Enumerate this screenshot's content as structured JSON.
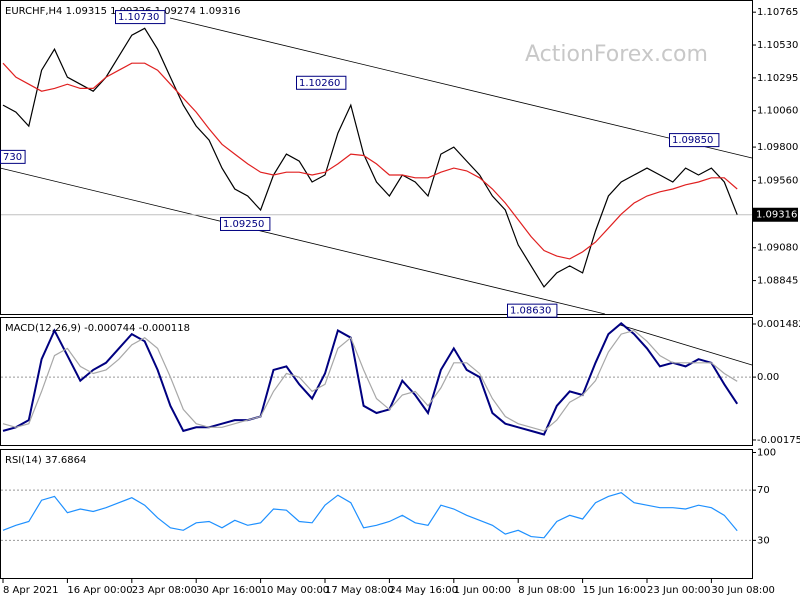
{
  "chart_data": [
    {
      "type": "line",
      "title": "EURCHF,H4  1.09315 1.09326 1.09274 1.09316",
      "watermark": "ActionForex.com",
      "ylim": [
        1.08606,
        1.10845
      ],
      "yticks": [
        1.10765,
        {
          "value": 1.1053,
          "label": "1.10530"
        },
        1.10295,
        {
          "value": 1.1006,
          "label": "1.10060"
        },
        {
          "value": 1.098,
          "label": "1.09800"
        },
        {
          "value": 1.0956,
          "label": "1.09560"
        },
        {
          "value": 1.0908,
          "label": "1.09080"
        },
        1.08845
      ],
      "last_price": 1.09316,
      "annotations": [
        {
          "value": 1.1073,
          "label": "1.10730"
        },
        {
          "value": 1.1026,
          "label": "1.10260"
        },
        {
          "value": 1.0985,
          "label": "1.09850"
        },
        {
          "value": 1.0925,
          "label": "1.09250"
        },
        {
          "value": 1.0863,
          "label": "1.08630"
        },
        {
          "value": 1.0973,
          "label": "730"
        }
      ],
      "series": [
        {
          "color": "#000000",
          "values": [
            1.101,
            1.1005,
            1.0995,
            1.1035,
            1.105,
            1.103,
            1.1025,
            1.102,
            1.103,
            1.1045,
            1.106,
            1.1065,
            1.105,
            1.103,
            1.101,
            1.0995,
            1.0985,
            1.0965,
            1.095,
            1.0945,
            1.0935,
            1.096,
            1.0975,
            1.097,
            1.0955,
            1.096,
            1.099,
            1.101,
            1.0975,
            1.0955,
            1.0945,
            1.096,
            1.0955,
            1.0945,
            1.0975,
            1.098,
            1.097,
            1.096,
            1.0945,
            1.0935,
            1.091,
            1.0895,
            1.088,
            1.089,
            1.0895,
            1.089,
            1.092,
            1.0945,
            1.0955,
            1.096,
            1.0965,
            1.096,
            1.0955,
            1.0965,
            1.096,
            1.0965,
            1.0955,
            1.09316
          ]
        },
        {
          "color": "#e02020",
          "values": [
            1.104,
            1.103,
            1.1025,
            1.102,
            1.1022,
            1.1025,
            1.1022,
            1.1022,
            1.103,
            1.1035,
            1.104,
            1.104,
            1.1035,
            1.1025,
            1.1015,
            1.1005,
            1.0993,
            1.0982,
            1.0975,
            1.0968,
            1.0962,
            1.096,
            1.0962,
            1.0962,
            1.096,
            1.0962,
            1.0968,
            1.0975,
            1.0974,
            1.0968,
            1.096,
            1.096,
            1.0958,
            1.0958,
            1.0962,
            1.0965,
            1.0963,
            1.0958,
            1.095,
            1.094,
            1.0928,
            1.0916,
            1.0906,
            1.0902,
            1.09,
            1.0905,
            1.0912,
            1.0922,
            1.0932,
            1.094,
            1.0945,
            1.0948,
            1.095,
            1.0953,
            1.0955,
            1.0958,
            1.0958,
            1.095
          ]
        }
      ]
    },
    {
      "type": "line",
      "title": "MACD(12,26,9) -0.000744 -0.000118",
      "ylim": [
        -0.001894,
        0.001649
      ],
      "yticks": [
        0.001482,
        {
          "value": 0,
          "label": "0.00"
        },
        -0.001754
      ],
      "series": [
        {
          "color": "#000080",
          "values": [
            -0.0015,
            -0.0014,
            -0.0012,
            0.0005,
            0.0013,
            0.0006,
            -0.0001,
            0.0002,
            0.0004,
            0.0008,
            0.0012,
            0.001,
            0.0002,
            -0.0008,
            -0.0015,
            -0.0014,
            -0.0014,
            -0.0013,
            -0.0012,
            -0.0012,
            -0.0011,
            0.0002,
            0.0003,
            -0.0002,
            -0.0006,
            0.0001,
            0.0013,
            0.0011,
            -0.0008,
            -0.001,
            -0.0009,
            -0.0001,
            -0.0005,
            -0.001,
            0.0002,
            0.0008,
            0.0002,
            0.0,
            -0.001,
            -0.0013,
            -0.0014,
            -0.0015,
            -0.0016,
            -0.0008,
            -0.0004,
            -0.0005,
            0.0004,
            0.0012,
            0.0015,
            0.0012,
            0.0008,
            0.0003,
            0.0004,
            0.0003,
            0.0005,
            0.0004,
            -0.0002,
            -0.000744
          ]
        },
        {
          "color": "#a8a8a8",
          "values": [
            -0.0013,
            -0.0014,
            -0.0013,
            -0.0004,
            0.0006,
            0.0008,
            0.0003,
            0.0001,
            0.0002,
            0.0005,
            0.0009,
            0.0011,
            0.0008,
            0.0,
            -0.0009,
            -0.0013,
            -0.0014,
            -0.0014,
            -0.0013,
            -0.0012,
            -0.0011,
            -0.0004,
            0.0001,
            0.0,
            -0.0004,
            -0.0002,
            0.0008,
            0.0011,
            0.0002,
            -0.0006,
            -0.0009,
            -0.0005,
            -0.0004,
            -0.0008,
            -0.0003,
            0.0004,
            0.0004,
            0.0001,
            -0.0006,
            -0.0011,
            -0.0013,
            -0.0014,
            -0.0015,
            -0.0012,
            -0.0007,
            -0.0005,
            -0.0001,
            0.0007,
            0.0012,
            0.0013,
            0.001,
            0.0006,
            0.0004,
            0.0004,
            0.0004,
            0.0004,
            0.0001,
            -0.000118
          ]
        }
      ]
    },
    {
      "type": "line",
      "title": "RSI(14) 37.6864",
      "ylim": [
        0,
        102
      ],
      "yticks": [
        100,
        70,
        30
      ],
      "categories": [
        "8 Apr 2021",
        null,
        null,
        null,
        null,
        "16 Apr 00:00",
        null,
        null,
        null,
        null,
        "23 Apr 08:00",
        null,
        null,
        null,
        null,
        "30 Apr 16:00",
        null,
        null,
        null,
        null,
        "10 May 00:00",
        null,
        null,
        null,
        null,
        "17 May 08:00",
        null,
        null,
        null,
        null,
        "24 May 16:00",
        null,
        null,
        null,
        null,
        "1 Jun 00:00",
        null,
        null,
        null,
        null,
        "8 Jun 08:00",
        null,
        null,
        null,
        null,
        "15 Jun 16:00",
        null,
        null,
        null,
        null,
        "23 Jun 00:00",
        null,
        null,
        null,
        null,
        "30 Jun 08:00",
        null,
        null
      ],
      "series": [
        {
          "color": "#1e90ff",
          "values": [
            38,
            42,
            45,
            62,
            65,
            52,
            55,
            53,
            56,
            60,
            64,
            58,
            48,
            40,
            38,
            44,
            45,
            40,
            46,
            42,
            44,
            55,
            54,
            45,
            44,
            58,
            66,
            60,
            40,
            42,
            45,
            50,
            44,
            42,
            58,
            55,
            50,
            46,
            42,
            35,
            38,
            33,
            32,
            45,
            50,
            47,
            60,
            65,
            68,
            60,
            58,
            56,
            56,
            55,
            58,
            56,
            50,
            37.6864
          ]
        }
      ]
    }
  ]
}
